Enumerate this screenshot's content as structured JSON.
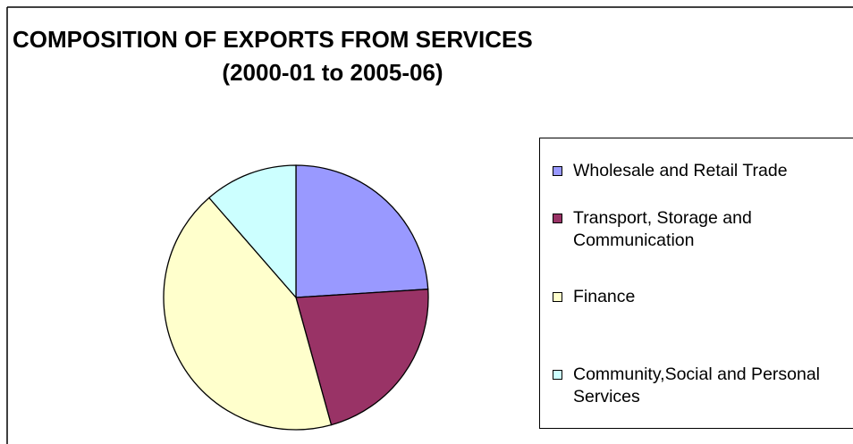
{
  "chart_data": {
    "type": "pie",
    "title": "COMPOSITION OF EXPORTS FROM SERVICES",
    "subtitle": "(2000-01 to 2005-06)",
    "categories": [
      "Wholesale and Retail Trade",
      "Transport, Storage and Communication",
      "Finance",
      "Community,Social and Personal Services"
    ],
    "values": [
      24,
      21.7,
      42.9,
      11.4
    ],
    "colors": [
      "#9999ff",
      "#993366",
      "#ffffcc",
      "#ccffff"
    ],
    "legend": "right"
  }
}
